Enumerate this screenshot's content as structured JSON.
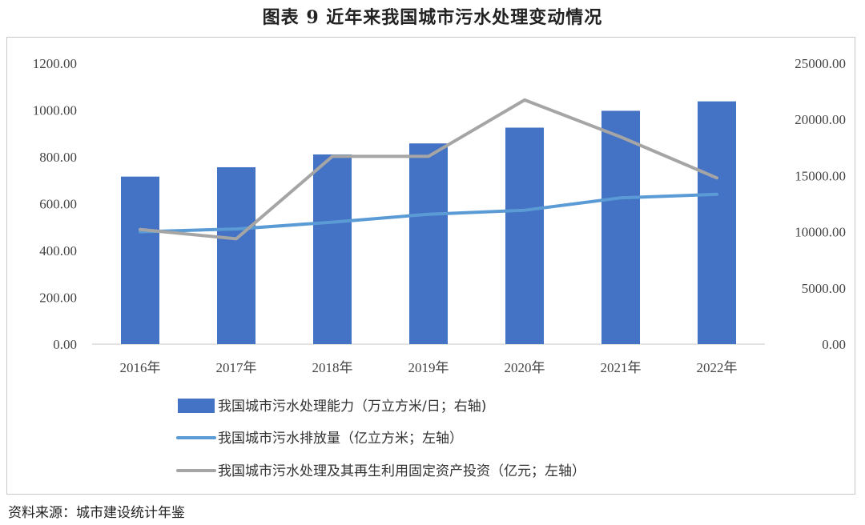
{
  "title": "图表 9    近年来我国城市污水处理变动情况",
  "source": "资料来源：城市建设统计年鉴",
  "colors": {
    "bar": "#4472c4",
    "line_discharge": "#5b9bd5",
    "line_invest": "#a5a5a5",
    "axis": "#c8c8c8"
  },
  "chart_data": {
    "type": "bar",
    "categories": [
      "2016年",
      "2017年",
      "2018年",
      "2019年",
      "2020年",
      "2021年",
      "2022年"
    ],
    "left_axis": {
      "min": 0,
      "max": 1200,
      "step": 200,
      "ticks": [
        "0.00",
        "200.00",
        "400.00",
        "600.00",
        "800.00",
        "1000.00",
        "1200.00"
      ]
    },
    "right_axis": {
      "min": 0,
      "max": 25000,
      "step": 5000,
      "ticks": [
        "0.00",
        "5000.00",
        "10000.00",
        "15000.00",
        "20000.00",
        "25000.00"
      ]
    },
    "series": [
      {
        "name": "我国城市污水处理能力（万立方米/日；右轴)",
        "type": "bar",
        "axis": "right",
        "values": [
          14910,
          15742,
          16881,
          17863,
          19267,
          20767,
          21606
        ]
      },
      {
        "name": "我国城市污水排放量（亿立方米；左轴）",
        "type": "line",
        "axis": "left",
        "values": [
          480,
          492,
          521,
          555,
          572,
          625,
          640
        ]
      },
      {
        "name": "我国城市污水处理及其再生利用固定资产投资（亿元；左轴）",
        "type": "line",
        "axis": "left",
        "values": [
          490,
          450,
          802,
          802,
          1043,
          885,
          710
        ]
      }
    ],
    "legend_position": "bottom",
    "grid": false
  }
}
